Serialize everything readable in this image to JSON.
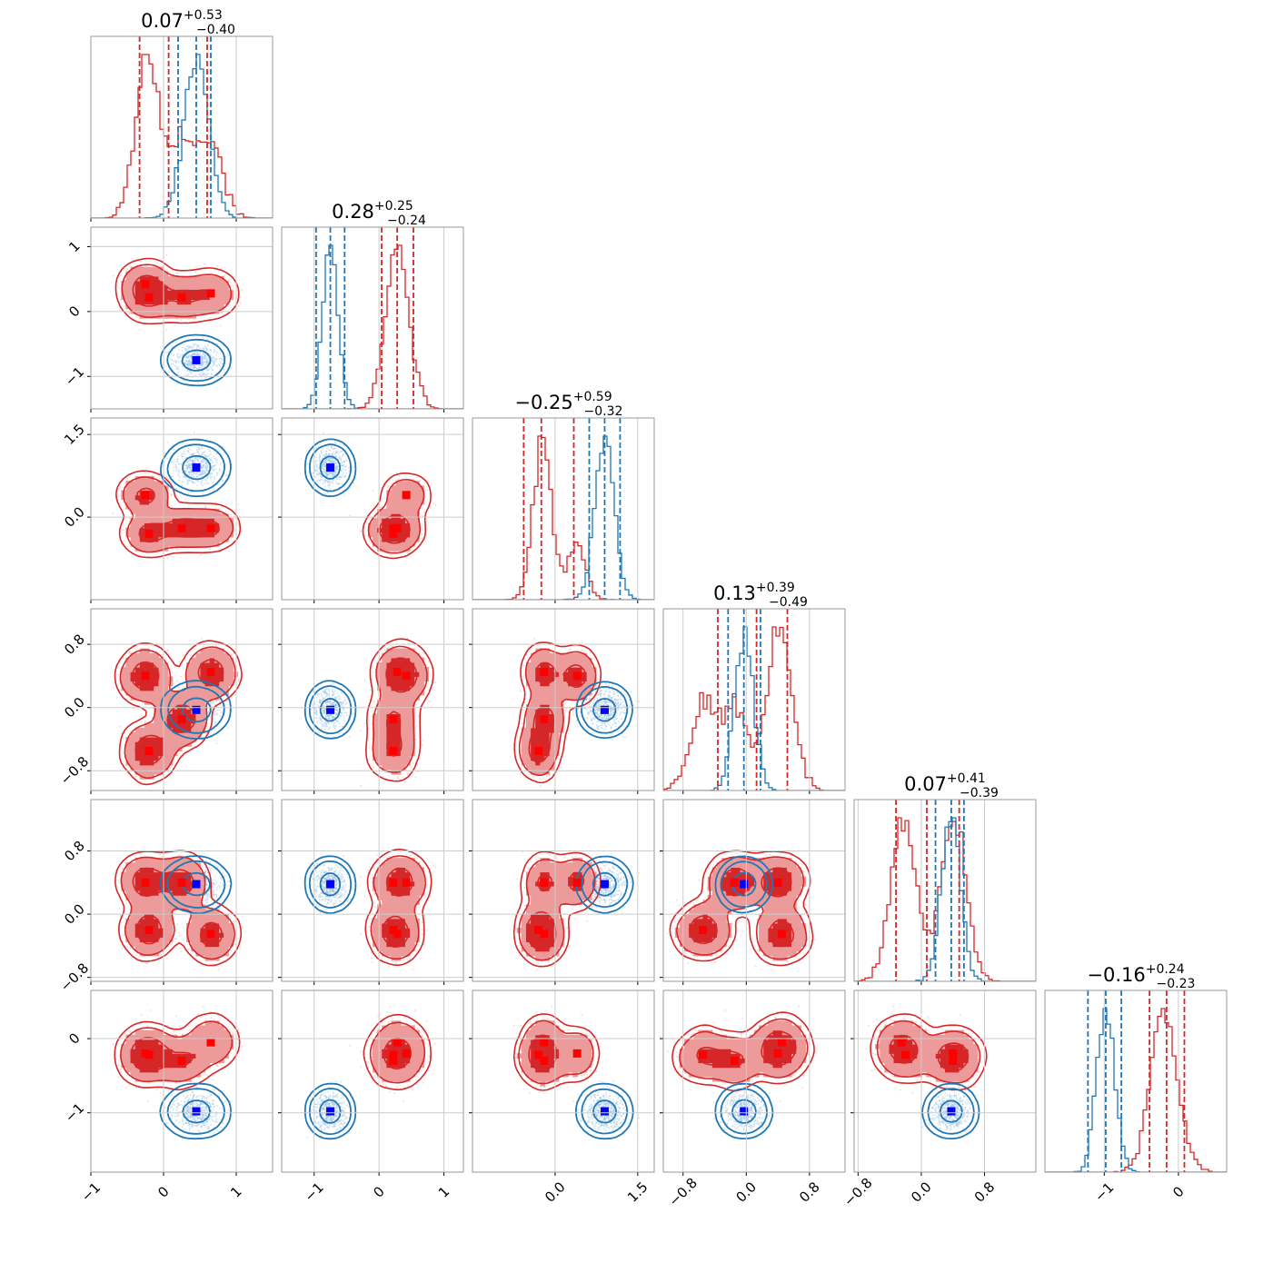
{
  "chart_data": {
    "type": "scatter",
    "subtype": "corner-plot",
    "title": "",
    "grid": true,
    "colors": {
      "red": "#d62728",
      "red_fill_light": "#ec9a9a",
      "blue": "#1f77b4",
      "marker_red": "#ff0000",
      "marker_blue": "#0000ff",
      "frame": "#999999",
      "grid": "#cccccc"
    },
    "parameters": [
      {
        "index": 0,
        "range": [
          -1.0,
          1.5
        ],
        "ticks": [
          "-1",
          "0",
          "1"
        ],
        "tick_values": [
          -1,
          0,
          1
        ]
      },
      {
        "index": 1,
        "range": [
          -1.5,
          1.3
        ],
        "ticks": [
          "-1",
          "0",
          "1"
        ],
        "tick_values": [
          -1,
          0,
          1
        ]
      },
      {
        "index": 2,
        "range": [
          -1.5,
          1.8
        ],
        "ticks": [
          "0.0",
          "1.5"
        ],
        "tick_values": [
          0.0,
          1.5
        ]
      },
      {
        "index": 3,
        "range": [
          -1.05,
          1.25
        ],
        "ticks": [
          "-0.8",
          "0.0",
          "0.8"
        ],
        "tick_values": [
          -0.8,
          0.0,
          0.8
        ]
      },
      {
        "index": 4,
        "range": [
          -0.85,
          1.45
        ],
        "ticks": [
          "-0.8",
          "0.0",
          "0.8"
        ],
        "tick_values": [
          -0.8,
          0.0,
          0.8
        ]
      },
      {
        "index": 5,
        "range": [
          -1.8,
          0.65
        ],
        "ticks": [
          "-1",
          "0"
        ],
        "tick_values": [
          -1,
          0
        ]
      }
    ],
    "diagonal_titles": [
      {
        "main": "0.07",
        "plus": "+0.53",
        "minus": "−0.40"
      },
      {
        "main": "0.28",
        "plus": "+0.25",
        "minus": "−0.24"
      },
      {
        "main": "−0.25",
        "plus": "+0.59",
        "minus": "−0.32"
      },
      {
        "main": "0.13",
        "plus": "+0.39",
        "minus": "−0.49"
      },
      {
        "main": "0.07",
        "plus": "+0.41",
        "minus": "−0.39"
      },
      {
        "main": "−0.16",
        "plus": "+0.24",
        "minus": "−0.23"
      }
    ],
    "bottom_tick_labels": [
      [
        "−1",
        "0",
        "1"
      ],
      [
        "−1",
        "0",
        "1"
      ],
      [
        "0.0",
        "1.5"
      ],
      [
        "−0.8",
        "0.0",
        "0.8"
      ],
      [
        "−0.8",
        "0.0",
        "0.8"
      ],
      [
        "−1",
        "0"
      ]
    ],
    "left_tick_labels": [
      [],
      [
        "−1",
        "0",
        "1"
      ],
      [
        "0.0",
        "1.5"
      ],
      [
        "−0.8",
        "0.0",
        "0.8"
      ],
      [
        "−0.8",
        "0.0",
        "0.8"
      ],
      [
        "−1",
        "0"
      ]
    ],
    "series": [
      {
        "name": "",
        "color": "#d62728",
        "modes": [
          [
            -0.25,
            0.42,
            0.4,
            0.4,
            0.4,
            -0.2
          ],
          [
            -0.2,
            0.22,
            -0.3,
            -0.55,
            -0.2,
            -0.22
          ],
          [
            0.25,
            0.22,
            -0.2,
            -0.15,
            0.4,
            -0.3
          ],
          [
            0.65,
            0.28,
            -0.2,
            0.45,
            -0.25,
            -0.05
          ]
        ],
        "quantile_lines": [
          [
            -0.33,
            0.07,
            0.6
          ],
          [
            0.04,
            0.28,
            0.53
          ],
          [
            -0.57,
            -0.25,
            0.34
          ],
          [
            -0.36,
            0.13,
            0.52
          ],
          [
            -0.32,
            0.07,
            0.48
          ],
          [
            -0.39,
            -0.16,
            0.08
          ]
        ]
      },
      {
        "name": "",
        "color": "#1f77b4",
        "center": [
          0.45,
          -0.75,
          0.9,
          -0.03,
          0.38,
          -0.98
        ],
        "sd": [
          0.17,
          0.12,
          0.17,
          0.12,
          0.12,
          0.12
        ],
        "quantile_lines": [
          [
            0.2,
            0.45,
            0.65
          ],
          [
            -0.97,
            -0.75,
            -0.53
          ],
          [
            0.62,
            0.9,
            1.18
          ],
          [
            -0.23,
            -0.03,
            0.18
          ],
          [
            0.18,
            0.38,
            0.54
          ],
          [
            -1.22,
            -0.98,
            -0.77
          ]
        ]
      }
    ]
  }
}
